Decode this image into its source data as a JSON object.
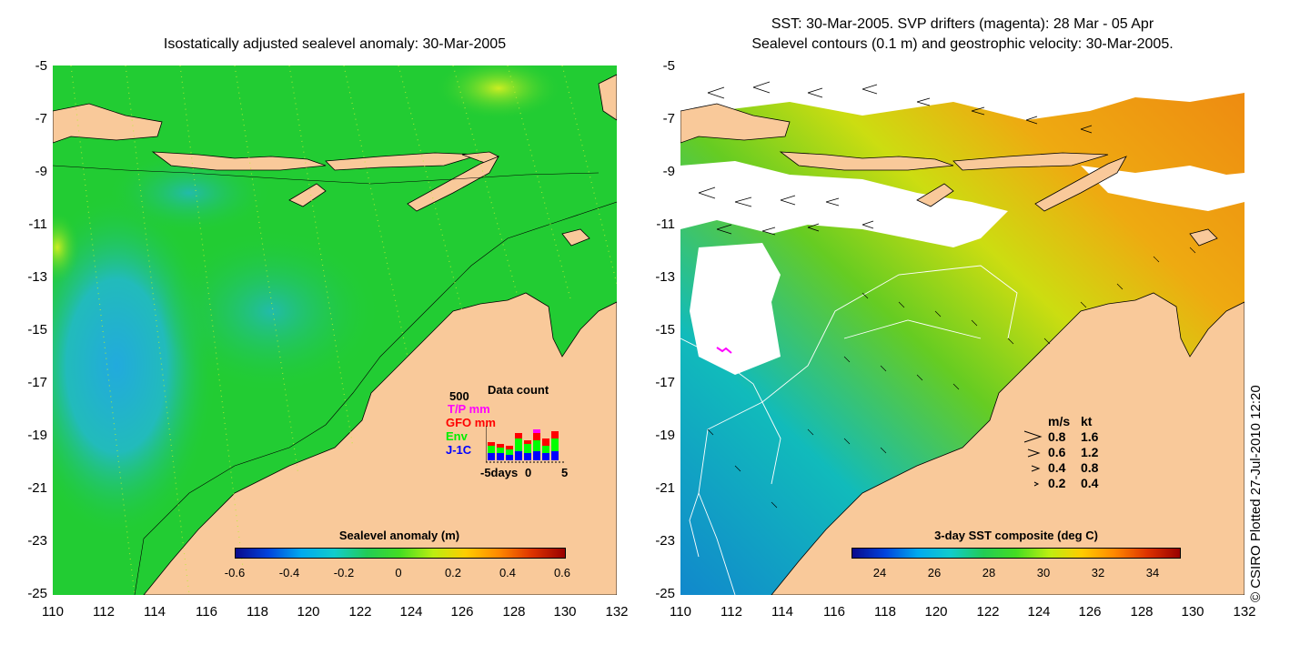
{
  "left_panel": {
    "title": "Isostatically adjusted sealevel anomaly: 30-Mar-2005",
    "y_ticks": [
      "-5",
      "-7",
      "-9",
      "-11",
      "-13",
      "-15",
      "-17",
      "-19",
      "-21",
      "-23",
      "-25"
    ],
    "x_ticks": [
      "110",
      "112",
      "114",
      "116",
      "118",
      "120",
      "122",
      "124",
      "126",
      "128",
      "130",
      "132"
    ],
    "colorbar": {
      "title": "Sealevel anomaly (m)",
      "ticks": [
        "-0.6",
        "-0.4",
        "-0.2",
        "0",
        "0.2",
        "0.4",
        "0.6"
      ]
    },
    "data_count": {
      "title": "Data count",
      "max_label": "500",
      "series": [
        {
          "name": "T/P mm",
          "color": "#ff00ff"
        },
        {
          "name": "GFO mm",
          "color": "#ff0000"
        },
        {
          "name": "Env",
          "color": "#00ff00"
        },
        {
          "name": "J-1C",
          "color": "#0000ff"
        }
      ],
      "x_label_left": "-5days",
      "x_label_mid": "0",
      "x_label_right": "5"
    }
  },
  "right_panel": {
    "title_line1": "SST: 30-Mar-2005. SVP drifters (magenta): 28 Mar - 05 Apr",
    "title_line2": "Sealevel contours (0.1 m) and geostrophic velocity: 30-Mar-2005.",
    "y_ticks": [
      "-5",
      "-7",
      "-9",
      "-11",
      "-13",
      "-15",
      "-17",
      "-19",
      "-21",
      "-23",
      "-25"
    ],
    "x_ticks": [
      "110",
      "112",
      "114",
      "116",
      "118",
      "120",
      "122",
      "124",
      "126",
      "128",
      "130",
      "132"
    ],
    "colorbar": {
      "title": "3-day SST composite (deg C)",
      "ticks": [
        "24",
        "26",
        "28",
        "30",
        "32",
        "34"
      ]
    },
    "velocity_legend": {
      "header_ms": "m/s",
      "header_kt": "kt",
      "rows": [
        {
          "ms": "0.8",
          "kt": "1.6"
        },
        {
          "ms": "0.6",
          "kt": "1.2"
        },
        {
          "ms": "0.4",
          "kt": "0.8"
        },
        {
          "ms": "0.2",
          "kt": "0.4"
        }
      ]
    }
  },
  "credit": "© CSIRO Plotted 27-Jul-2010 12:20",
  "colors": {
    "land": "#f9c99a",
    "ocean_green": "#22cc22",
    "ocean_cyan": "#22bbbb",
    "cloud": "#ffffff"
  }
}
